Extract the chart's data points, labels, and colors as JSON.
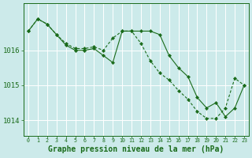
{
  "bg_color": "#cceaea",
  "grid_color": "#ffffff",
  "line_color": "#1a6b1a",
  "marker_color": "#1a6b1a",
  "xlabel": "Graphe pression niveau de la mer (hPa)",
  "xlabel_fontsize": 7.0,
  "ytick_labels": [
    "1016",
    "1015",
    "1014"
  ],
  "ytick_vals": [
    1016,
    1015,
    1014
  ],
  "xlim": [
    -0.5,
    23.5
  ],
  "ylim": [
    1013.55,
    1017.35
  ],
  "line1_x": [
    0,
    1,
    2,
    3,
    4,
    5,
    6,
    7,
    8,
    9,
    10,
    11,
    12,
    13,
    14,
    15,
    16,
    17,
    18,
    19,
    20,
    21,
    22,
    23
  ],
  "line1_y": [
    1016.55,
    1016.9,
    1016.75,
    1016.45,
    1016.2,
    1016.05,
    1016.05,
    1016.1,
    1016.0,
    1016.35,
    1016.55,
    1016.55,
    1016.2,
    1015.7,
    1015.35,
    1015.15,
    1014.85,
    1014.6,
    1014.25,
    1014.05,
    1014.05,
    1014.35,
    1015.2,
    1015.0
  ],
  "line2_x": [
    0,
    1,
    2,
    3,
    4,
    5,
    6,
    7,
    8,
    9,
    10,
    11,
    12,
    13,
    14,
    15,
    16,
    17,
    18,
    19,
    20,
    21,
    22,
    23
  ],
  "line2_y": [
    1016.55,
    1016.9,
    1016.75,
    1016.45,
    1016.15,
    1016.0,
    1016.0,
    1016.05,
    1015.85,
    1015.65,
    1016.55,
    1016.55,
    1016.55,
    1016.55,
    1016.45,
    1015.85,
    1015.5,
    1015.25,
    1014.65,
    1014.35,
    1014.5,
    1014.1,
    1014.35,
    1015.0
  ]
}
